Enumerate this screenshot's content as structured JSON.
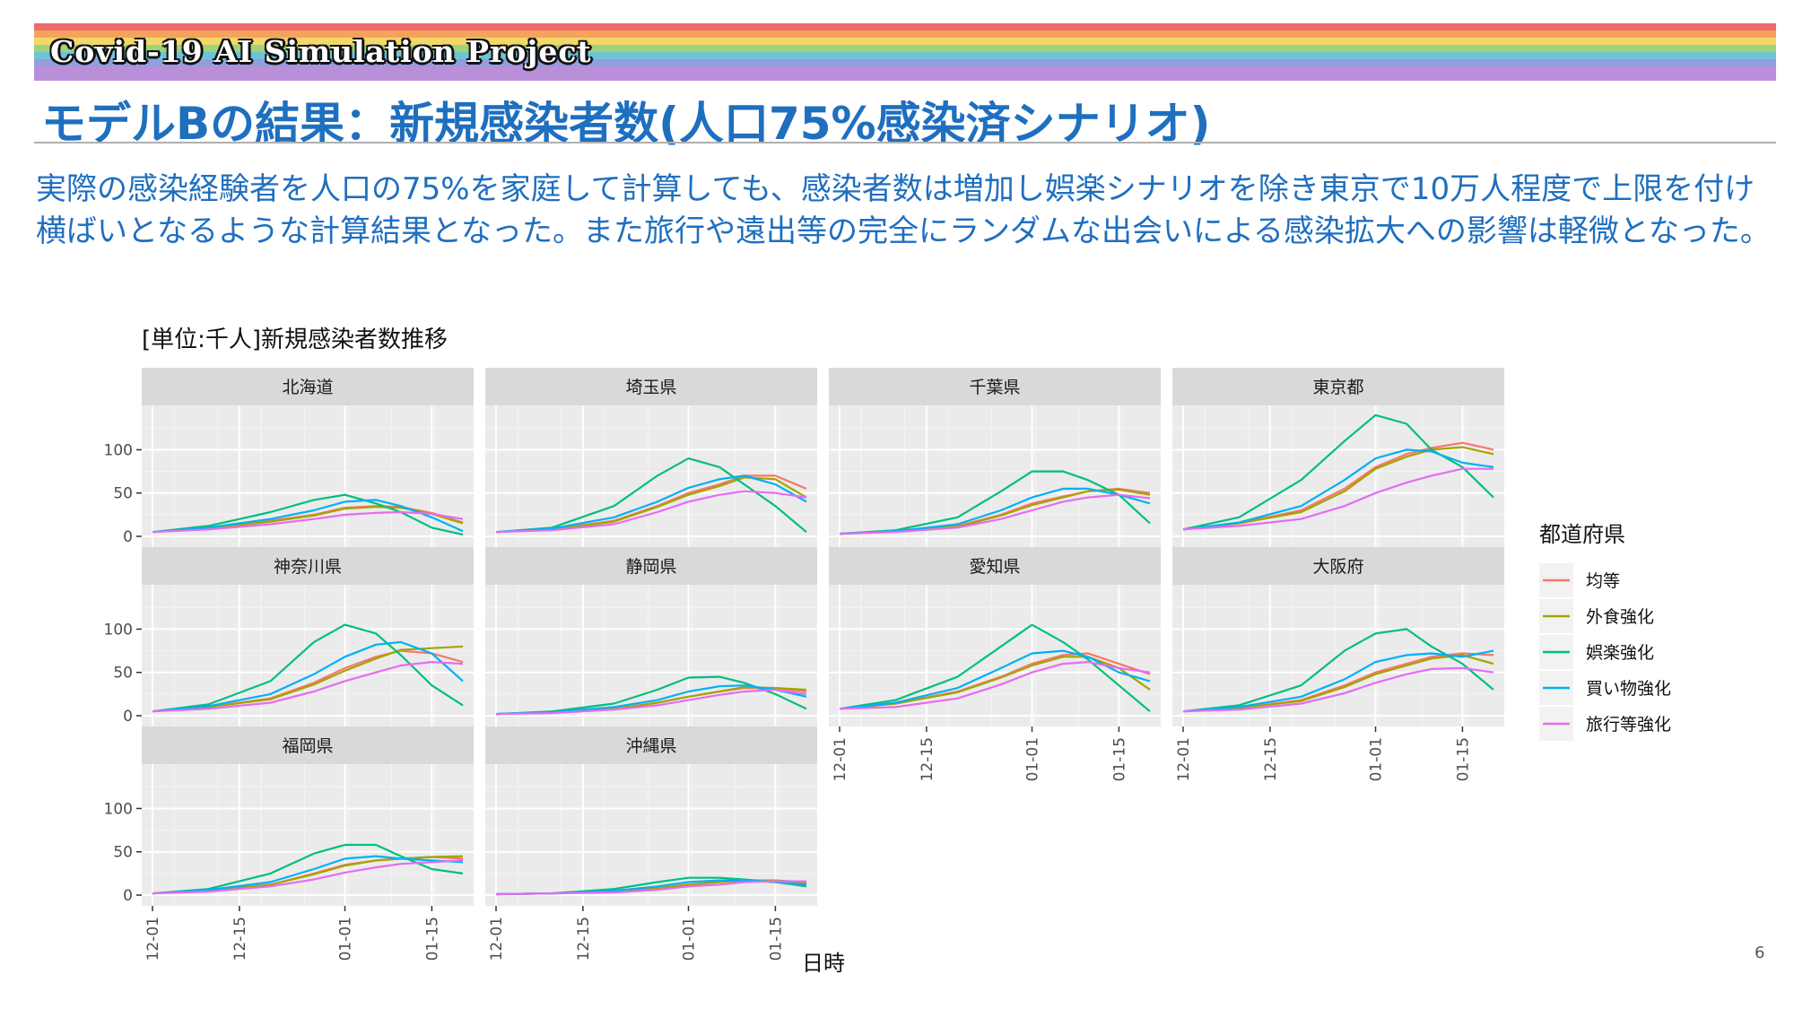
{
  "header": {
    "project_title": "Covid-19 AI Simulation Project",
    "slide_title": "モデルBの結果：新規感染者数(人口75%感染済シナリオ)",
    "rainbow_colors": [
      "#ef6b6b",
      "#f5a35c",
      "#f4d76a",
      "#9fd27a",
      "#6fc3d6",
      "#8f9fe0",
      "#b88fd8"
    ]
  },
  "body": {
    "paragraph": "実際の感染経験者を人口の75%を家庭して計算しても、感染者数は増加し娯楽シナリオを除き東京で10万人程度で上限を付け横ばいとなるような計算結果となった。また旅行や遠出等の完全にランダムな出会いによる感染拡大への影響は軽微となった。"
  },
  "page_number": "6",
  "chart_data": {
    "type": "line",
    "title": "[単位:千人]新規感染者数推移",
    "xlabel": "日時",
    "ylabel": "",
    "x_ticks": [
      "12-01",
      "12-15",
      "01-01",
      "01-15"
    ],
    "x_range": [
      "12-01",
      "01-20"
    ],
    "ylim": [
      0,
      145
    ],
    "y_ticks": [
      0,
      50,
      100
    ],
    "grid": true,
    "legend_title": "都道府県",
    "legend_position": "right",
    "legend": [
      {
        "name": "均等",
        "color": "#F8766D"
      },
      {
        "name": "外食強化",
        "color": "#A3A500"
      },
      {
        "name": "娯楽強化",
        "color": "#00BF7D"
      },
      {
        "name": "買い物強化",
        "color": "#00B0F6"
      },
      {
        "name": "旅行等強化",
        "color": "#E76BF3"
      }
    ],
    "x_keypoints": [
      "12-01",
      "12-10",
      "12-20",
      "12-27",
      "01-01",
      "01-06",
      "01-10",
      "01-15",
      "01-20"
    ],
    "panels": [
      {
        "name": "北海道",
        "series": [
          {
            "name": "均等",
            "values": [
              5,
              9,
              18,
              25,
              33,
              35,
              34,
              27,
              16
            ]
          },
          {
            "name": "外食強化",
            "values": [
              5,
              9,
              17,
              24,
              32,
              34,
              33,
              26,
              15
            ]
          },
          {
            "name": "娯楽強化",
            "values": [
              5,
              12,
              28,
              42,
              48,
              38,
              28,
              10,
              2
            ]
          },
          {
            "name": "買い物強化",
            "values": [
              5,
              10,
              20,
              30,
              40,
              42,
              35,
              22,
              6
            ]
          },
          {
            "name": "旅行等強化",
            "values": [
              5,
              8,
              14,
              20,
              25,
              27,
              28,
              26,
              20
            ]
          }
        ]
      },
      {
        "name": "埼玉県",
        "series": [
          {
            "name": "均等",
            "values": [
              5,
              8,
              18,
              35,
              50,
              60,
              70,
              70,
              55
            ]
          },
          {
            "name": "外食強化",
            "values": [
              5,
              8,
              17,
              34,
              48,
              58,
              68,
              66,
              45
            ]
          },
          {
            "name": "娯楽強化",
            "values": [
              5,
              10,
              35,
              70,
              90,
              80,
              60,
              35,
              5
            ]
          },
          {
            "name": "買い物強化",
            "values": [
              5,
              9,
              22,
              40,
              56,
              66,
              70,
              60,
              40
            ]
          },
          {
            "name": "旅行等強化",
            "values": [
              5,
              7,
              14,
              28,
              40,
              48,
              52,
              50,
              45
            ]
          }
        ]
      },
      {
        "name": "千葉県",
        "series": [
          {
            "name": "均等",
            "values": [
              3,
              6,
              12,
              25,
              38,
              46,
              52,
              55,
              50
            ]
          },
          {
            "name": "外食強化",
            "values": [
              3,
              6,
              11,
              24,
              36,
              45,
              52,
              54,
              48
            ]
          },
          {
            "name": "娯楽強化",
            "values": [
              3,
              7,
              22,
              52,
              75,
              75,
              65,
              48,
              15
            ]
          },
          {
            "name": "買い物強化",
            "values": [
              3,
              6,
              14,
              30,
              45,
              55,
              55,
              48,
              38
            ]
          },
          {
            "name": "旅行等強化",
            "values": [
              3,
              5,
              10,
              20,
              30,
              40,
              45,
              48,
              44
            ]
          }
        ]
      },
      {
        "name": "東京都",
        "series": [
          {
            "name": "均等",
            "values": [
              8,
              15,
              30,
              55,
              80,
              95,
              102,
              108,
              100
            ]
          },
          {
            "name": "外食強化",
            "values": [
              8,
              15,
              28,
              52,
              78,
              92,
              100,
              103,
              95
            ]
          },
          {
            "name": "娯楽強化",
            "values": [
              8,
              22,
              65,
              110,
              140,
              130,
              100,
              80,
              45
            ]
          },
          {
            "name": "買い物強化",
            "values": [
              8,
              16,
              35,
              65,
              90,
              100,
              98,
              85,
              80
            ]
          },
          {
            "name": "旅行等強化",
            "values": [
              8,
              12,
              20,
              35,
              50,
              62,
              70,
              78,
              78
            ]
          }
        ]
      },
      {
        "name": "神奈川県",
        "series": [
          {
            "name": "均等",
            "values": [
              5,
              10,
              20,
              38,
              55,
              68,
              75,
              72,
              62
            ]
          },
          {
            "name": "外食強化",
            "values": [
              5,
              10,
              19,
              36,
              52,
              66,
              76,
              78,
              80
            ]
          },
          {
            "name": "娯楽強化",
            "values": [
              5,
              13,
              40,
              85,
              105,
              95,
              70,
              35,
              12
            ]
          },
          {
            "name": "買い物強化",
            "values": [
              5,
              11,
              25,
              48,
              68,
              82,
              85,
              72,
              40
            ]
          },
          {
            "name": "旅行等強化",
            "values": [
              5,
              8,
              15,
              28,
              40,
              50,
              58,
              62,
              60
            ]
          }
        ]
      },
      {
        "name": "静岡県",
        "series": [
          {
            "name": "均等",
            "values": [
              2,
              4,
              8,
              15,
              22,
              28,
              32,
              32,
              28
            ]
          },
          {
            "name": "外食強化",
            "values": [
              2,
              4,
              8,
              15,
              22,
              28,
              33,
              32,
              30
            ]
          },
          {
            "name": "娯楽強化",
            "values": [
              2,
              5,
              14,
              30,
              44,
              45,
              38,
              25,
              8
            ]
          },
          {
            "name": "買い物強化",
            "values": [
              2,
              4,
              10,
              18,
              28,
              34,
              35,
              30,
              22
            ]
          },
          {
            "name": "旅行等強化",
            "values": [
              2,
              3,
              7,
              12,
              18,
              24,
              28,
              30,
              25
            ]
          }
        ]
      },
      {
        "name": "愛知県",
        "series": [
          {
            "name": "均等",
            "values": [
              8,
              14,
              28,
              45,
              60,
              70,
              72,
              60,
              48
            ]
          },
          {
            "name": "外食強化",
            "values": [
              8,
              14,
              27,
              44,
              58,
              68,
              68,
              55,
              30
            ]
          },
          {
            "name": "娯楽強化",
            "values": [
              8,
              18,
              45,
              80,
              105,
              85,
              65,
              35,
              5
            ]
          },
          {
            "name": "買い物強化",
            "values": [
              8,
              15,
              32,
              55,
              72,
              75,
              68,
              50,
              40
            ]
          },
          {
            "name": "旅行等強化",
            "values": [
              8,
              10,
              20,
              36,
              50,
              60,
              62,
              55,
              50
            ]
          }
        ]
      },
      {
        "name": "大阪府",
        "series": [
          {
            "name": "均等",
            "values": [
              5,
              9,
              18,
              35,
              50,
              60,
              68,
              72,
              70
            ]
          },
          {
            "name": "外食強化",
            "values": [
              5,
              9,
              17,
              33,
              48,
              58,
              66,
              70,
              60
            ]
          },
          {
            "name": "娯楽強化",
            "values": [
              5,
              12,
              35,
              75,
              95,
              100,
              80,
              60,
              30
            ]
          },
          {
            "name": "買い物強化",
            "values": [
              5,
              10,
              22,
              42,
              62,
              70,
              72,
              68,
              75
            ]
          },
          {
            "name": "旅行等強化",
            "values": [
              5,
              7,
              14,
              26,
              38,
              48,
              54,
              55,
              50
            ]
          }
        ]
      },
      {
        "name": "福岡県",
        "series": [
          {
            "name": "均等",
            "values": [
              2,
              5,
              12,
              25,
              35,
              40,
              42,
              44,
              42
            ]
          },
          {
            "name": "外食強化",
            "values": [
              2,
              5,
              12,
              24,
              34,
              40,
              42,
              44,
              45
            ]
          },
          {
            "name": "娯楽強化",
            "values": [
              2,
              7,
              25,
              48,
              58,
              58,
              45,
              30,
              25
            ]
          },
          {
            "name": "買い物強化",
            "values": [
              2,
              6,
              15,
              30,
              42,
              45,
              42,
              40,
              38
            ]
          },
          {
            "name": "旅行等強化",
            "values": [
              2,
              4,
              10,
              18,
              26,
              32,
              36,
              38,
              40
            ]
          }
        ]
      },
      {
        "name": "沖縄県",
        "series": [
          {
            "name": "均等",
            "values": [
              1,
              2,
              4,
              8,
              12,
              15,
              17,
              17,
              15
            ]
          },
          {
            "name": "外食強化",
            "values": [
              1,
              2,
              4,
              8,
              12,
              15,
              17,
              17,
              14
            ]
          },
          {
            "name": "娯楽強化",
            "values": [
              1,
              2,
              7,
              15,
              20,
              20,
              18,
              15,
              10
            ]
          },
          {
            "name": "買い物強化",
            "values": [
              1,
              2,
              5,
              10,
              15,
              17,
              17,
              15,
              12
            ]
          },
          {
            "name": "旅行等強化",
            "values": [
              1,
              2,
              3,
              6,
              10,
              12,
              15,
              16,
              16
            ]
          }
        ]
      }
    ]
  }
}
